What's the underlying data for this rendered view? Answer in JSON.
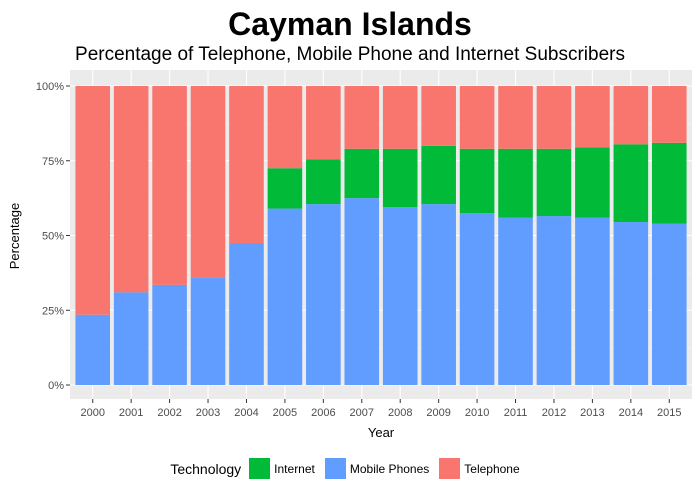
{
  "title": "Cayman Islands",
  "subtitle": "Percentage of Telephone, Mobile Phone and Internet Subscribers",
  "colors": {
    "Internet": "#00BA38",
    "Mobile Phones": "#619CFF",
    "Telephone": "#F8766D"
  },
  "legend": {
    "title": "Technology",
    "items": [
      "Internet",
      "Mobile Phones",
      "Telephone"
    ]
  },
  "chart_data": {
    "type": "bar",
    "stacked": true,
    "title": "Cayman Islands",
    "subtitle": "Percentage of Telephone, Mobile Phone and Internet Subscribers",
    "xlabel": "Year",
    "ylabel": "Percentage",
    "ylim": [
      0,
      100
    ],
    "yticks": [
      "0%",
      "25%",
      "50%",
      "75%",
      "100%"
    ],
    "grid": true,
    "legend_position": "bottom",
    "categories": [
      "2000",
      "2001",
      "2002",
      "2003",
      "2004",
      "2005",
      "2006",
      "2007",
      "2008",
      "2009",
      "2010",
      "2011",
      "2012",
      "2013",
      "2014",
      "2015"
    ],
    "series": [
      {
        "name": "Mobile Phones",
        "values": [
          23.5,
          31,
          33.5,
          36,
          47.5,
          59,
          60.5,
          62.5,
          59.5,
          60.5,
          57.5,
          56,
          56.5,
          56,
          54.5,
          54
        ]
      },
      {
        "name": "Internet",
        "values": [
          0,
          0,
          0,
          0,
          0,
          13.5,
          15,
          16.5,
          19.5,
          19.5,
          21.5,
          23,
          22.5,
          23.5,
          26,
          27
        ]
      },
      {
        "name": "Telephone",
        "values": [
          76.5,
          69,
          66.5,
          64,
          52.5,
          27.5,
          24.5,
          21,
          21,
          20,
          21,
          21,
          21,
          20.5,
          19.5,
          19
        ]
      }
    ]
  }
}
